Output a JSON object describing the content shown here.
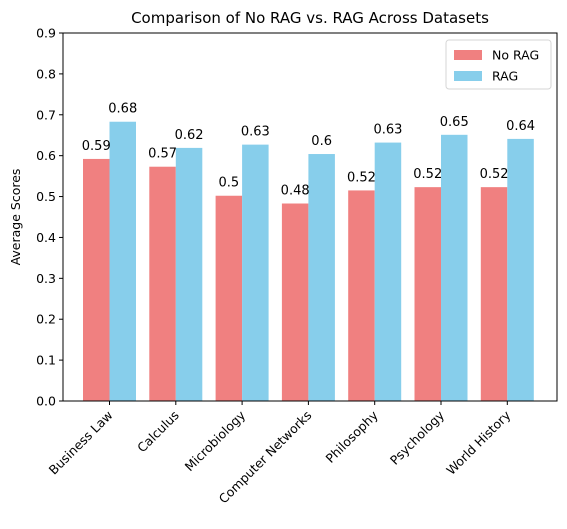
{
  "chart_data": {
    "type": "bar",
    "title": "Comparison of No RAG vs. RAG Across Datasets",
    "xlabel": "",
    "ylabel": "Average Scores",
    "ylim": [
      0,
      0.9
    ],
    "yticks": [
      "0.0",
      "0.1",
      "0.2",
      "0.3",
      "0.4",
      "0.5",
      "0.6",
      "0.7",
      "0.8",
      "0.9"
    ],
    "categories": [
      "Business Law",
      "Calculus",
      "Microbiology",
      "Computer Networks",
      "Philosophy",
      "Psychology",
      "World History"
    ],
    "series": [
      {
        "name": "No RAG",
        "color": "#f08080",
        "values": [
          0.592,
          0.573,
          0.502,
          0.483,
          0.515,
          0.523,
          0.523
        ],
        "labels": [
          "0.59",
          "0.57",
          "0.5",
          "0.48",
          "0.52",
          "0.52",
          "0.52"
        ]
      },
      {
        "name": "RAG",
        "color": "#87ceeb",
        "values": [
          0.683,
          0.619,
          0.627,
          0.604,
          0.632,
          0.651,
          0.641
        ],
        "labels": [
          "0.68",
          "0.62",
          "0.63",
          "0.6",
          "0.63",
          "0.65",
          "0.64"
        ]
      }
    ],
    "legend": "top-right",
    "grid": false
  }
}
